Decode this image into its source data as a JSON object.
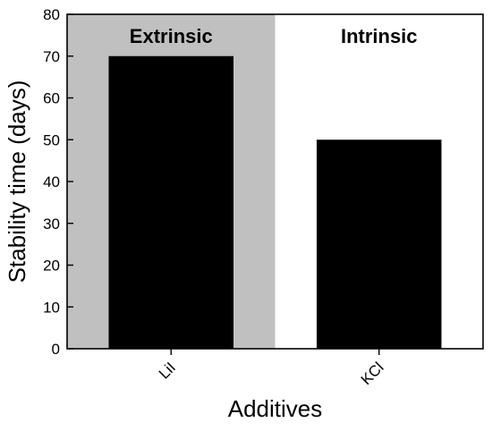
{
  "chart_data": {
    "type": "bar",
    "categories": [
      "LiI",
      "KCl"
    ],
    "values": [
      70,
      50
    ],
    "xlabel": "Additives",
    "ylabel": "Stability time (days)",
    "ylim": [
      0,
      80
    ],
    "yticks": [
      0,
      10,
      20,
      30,
      40,
      50,
      60,
      70,
      80
    ],
    "grid": false,
    "legend": "none",
    "regions": [
      {
        "label": "Extrinsic",
        "categories": [
          "LiI"
        ],
        "background": "#c0c0c0"
      },
      {
        "label": "Intrinsic",
        "categories": [
          "KCl"
        ],
        "background": "#ffffff"
      }
    ],
    "colors": {
      "bar": "#000000",
      "axis": "#000000"
    }
  }
}
